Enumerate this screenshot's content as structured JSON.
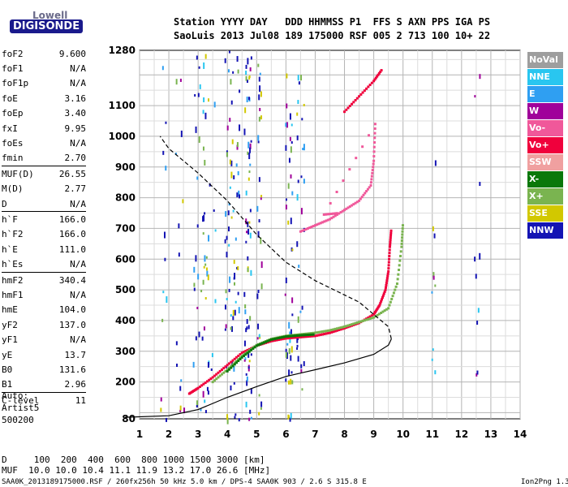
{
  "logo": {
    "top": "Lowell",
    "bottom": "DIGISONDE"
  },
  "header": {
    "line1": "Station YYYY DAY   DDD HHMMSS P1  FFS S AXN PPS IGA PS",
    "line2": "SaoLuis 2013 Jul08 189 175000 RSF 005 2 713 100 10+ 22"
  },
  "params": [
    {
      "name": "foF2",
      "value": "9.600"
    },
    {
      "name": "foF1",
      "value": "N/A"
    },
    {
      "name": "foF1p",
      "value": "N/A"
    },
    {
      "name": "foE",
      "value": "3.16"
    },
    {
      "name": "foEp",
      "value": "3.40"
    },
    {
      "name": "fxI",
      "value": "9.95"
    },
    {
      "name": "foEs",
      "value": "N/A"
    },
    {
      "name": "fmin",
      "value": "2.70"
    },
    {
      "name": "MUF(D)",
      "value": "26.55",
      "sep": true
    },
    {
      "name": "M(D)",
      "value": "2.77"
    },
    {
      "name": "D",
      "value": "N/A"
    },
    {
      "name": "h`F",
      "value": "166.0",
      "sep": true
    },
    {
      "name": "h`F2",
      "value": "166.0"
    },
    {
      "name": "h`E",
      "value": "111.0"
    },
    {
      "name": "h`Es",
      "value": "N/A"
    },
    {
      "name": "hmF2",
      "value": "340.4",
      "sep": true
    },
    {
      "name": "hmF1",
      "value": "N/A"
    },
    {
      "name": "hmE",
      "value": "104.0"
    },
    {
      "name": "yF2",
      "value": "137.0"
    },
    {
      "name": "yF1",
      "value": "N/A"
    },
    {
      "name": "yE",
      "value": "13.7"
    },
    {
      "name": "B0",
      "value": "131.6"
    },
    {
      "name": "B1",
      "value": "2.96"
    },
    {
      "name": "C-level",
      "value": "11",
      "sep": true
    }
  ],
  "auto": {
    "l1": "Auto:",
    "l2": "Artist5",
    "l3": "500200"
  },
  "muf_table": {
    "d_row": "D     100  200  400  600  800 1000 1500 3000 [km]",
    "muf_row": "MUF  10.0 10.0 10.4 11.1 11.9 13.2 17.0 26.6 [MHz]"
  },
  "footer": {
    "left": "SAA0K_2013189175000.RSF / 260fx256h 50 kHz 5.0 km / DPS-4 SAA0K 903 / 2.6 S 315.8 E",
    "right": "Ion2Png 1.3.17"
  },
  "legend": [
    {
      "label": "NoVal",
      "color": "#9e9e9e"
    },
    {
      "label": "NNE",
      "color": "#29c6f0"
    },
    {
      "label": "E",
      "color": "#2f9ff2"
    },
    {
      "label": "W",
      "color": "#a0009a"
    },
    {
      "label": "Vo-",
      "color": "#f0589a"
    },
    {
      "label": "Vo+",
      "color": "#f0003c"
    },
    {
      "label": "SSW",
      "color": "#f0a0a0"
    },
    {
      "label": "X-",
      "color": "#0a780a"
    },
    {
      "label": "X+",
      "color": "#7ab450"
    },
    {
      "label": "SSE",
      "color": "#d2c800"
    },
    {
      "label": "NNW",
      "color": "#1414b4"
    }
  ],
  "chart_data": {
    "type": "scatter",
    "xlim": [
      1,
      14
    ],
    "ylim": [
      80,
      1280
    ],
    "x_ticks": [
      1,
      2,
      3,
      4,
      5,
      6,
      7,
      8,
      9,
      10,
      11,
      12,
      13,
      14
    ],
    "y_ticks": [
      80,
      200,
      300,
      400,
      500,
      600,
      700,
      800,
      900,
      1000,
      1100,
      1280
    ],
    "grid": true,
    "series": [
      {
        "name": "Vo+",
        "color": "#f0003c",
        "points": [
          [
            2.7,
            162
          ],
          [
            3.0,
            180
          ],
          [
            3.5,
            215
          ],
          [
            4.0,
            255
          ],
          [
            4.5,
            295
          ],
          [
            5.0,
            318
          ],
          [
            5.5,
            333
          ],
          [
            6.0,
            342
          ],
          [
            6.5,
            346
          ],
          [
            7.0,
            350
          ],
          [
            7.5,
            360
          ],
          [
            8.0,
            375
          ],
          [
            8.5,
            392
          ],
          [
            9.0,
            420
          ],
          [
            9.2,
            450
          ],
          [
            9.4,
            500
          ],
          [
            9.5,
            560
          ],
          [
            9.55,
            640
          ],
          [
            9.6,
            700
          ]
        ]
      },
      {
        "name": "X+",
        "color": "#7ab450",
        "points": [
          [
            3.5,
            200
          ],
          [
            4.0,
            240
          ],
          [
            4.5,
            285
          ],
          [
            5.0,
            320
          ],
          [
            5.5,
            340
          ],
          [
            6.0,
            350
          ],
          [
            6.5,
            355
          ],
          [
            7.0,
            360
          ],
          [
            7.5,
            368
          ],
          [
            8.0,
            380
          ],
          [
            8.5,
            395
          ],
          [
            9.0,
            410
          ],
          [
            9.5,
            440
          ],
          [
            9.8,
            520
          ],
          [
            9.95,
            640
          ],
          [
            10.0,
            720
          ]
        ]
      },
      {
        "name": "X-",
        "color": "#0a780a",
        "points": [
          [
            4.0,
            235
          ],
          [
            4.5,
            280
          ],
          [
            5.0,
            318
          ],
          [
            5.5,
            338
          ],
          [
            6.0,
            348
          ],
          [
            6.5,
            352
          ],
          [
            7.0,
            355
          ]
        ]
      },
      {
        "name": "Vo-",
        "color": "#f0589a",
        "points": [
          [
            6.5,
            690
          ],
          [
            7.0,
            710
          ],
          [
            7.5,
            730
          ],
          [
            8.0,
            760
          ],
          [
            8.5,
            790
          ],
          [
            8.9,
            840
          ],
          [
            9.0,
            920
          ],
          [
            9.05,
            1040
          ],
          [
            7.3,
            745
          ],
          [
            7.8,
            750
          ]
        ]
      },
      {
        "name": "Vo+",
        "color": "#f0003c",
        "points": [
          [
            8.0,
            1080
          ],
          [
            8.5,
            1130
          ],
          [
            9.0,
            1180
          ],
          [
            9.3,
            1220
          ]
        ]
      }
    ],
    "profile_solid": [
      [
        0.5,
        85
      ],
      [
        2.0,
        90
      ],
      [
        3.0,
        110
      ],
      [
        4.0,
        150
      ],
      [
        5.0,
        185
      ],
      [
        6.0,
        218
      ],
      [
        7.0,
        240
      ],
      [
        8.0,
        262
      ],
      [
        9.0,
        290
      ],
      [
        9.5,
        320
      ],
      [
        9.6,
        340
      ]
    ],
    "profile_dashed": [
      [
        9.6,
        340
      ],
      [
        9.5,
        380
      ],
      [
        9.0,
        420
      ],
      [
        8.5,
        460
      ],
      [
        7.0,
        530
      ],
      [
        6.0,
        590
      ],
      [
        5.0,
        680
      ],
      [
        4.0,
        790
      ],
      [
        3.0,
        880
      ],
      [
        2.0,
        960
      ],
      [
        1.7,
        1000
      ]
    ]
  }
}
